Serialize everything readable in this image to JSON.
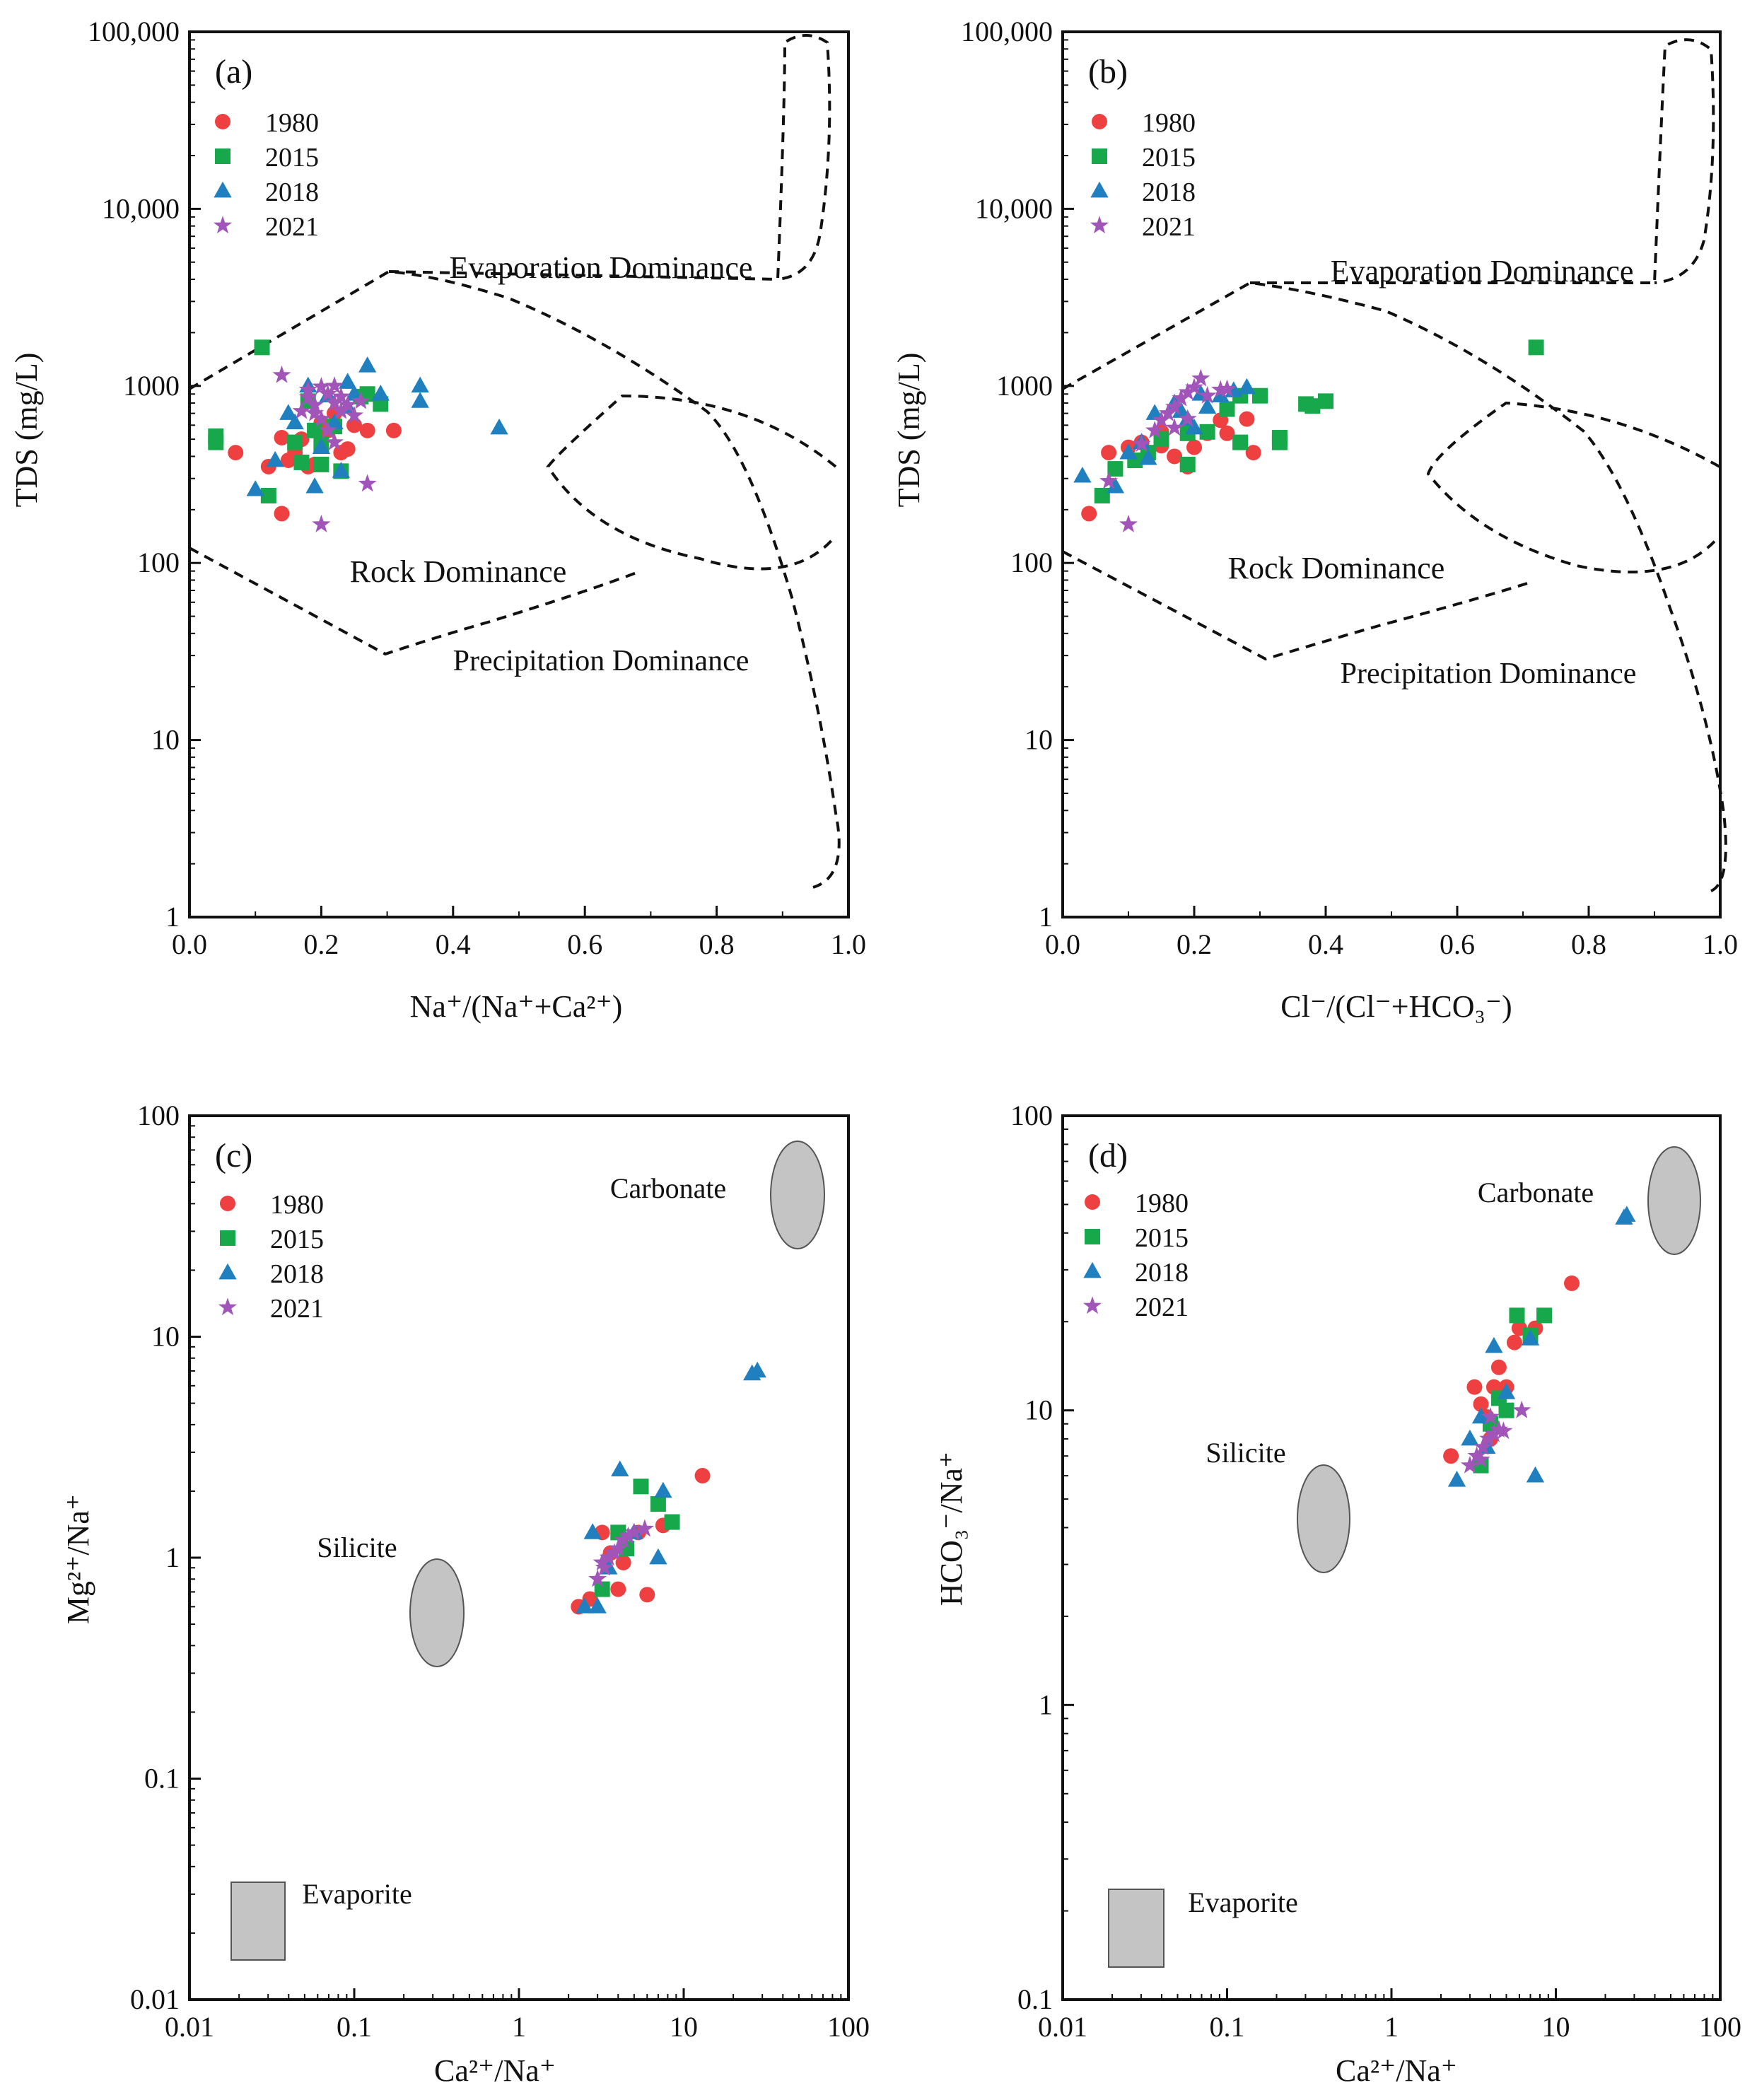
{
  "colors": {
    "1980": "#ee4040",
    "2015": "#16a84a",
    "2018": "#1f7fbf",
    "2021": "#a155b9",
    "field": "#c4c4c4"
  },
  "chart_data": [
    {
      "type": "scatter",
      "panel_label": "(a)",
      "xscale": "linear",
      "yscale": "log",
      "xlim": [
        0,
        1
      ],
      "ylim": [
        1,
        100000
      ],
      "xticks": [
        "0.0",
        "0.2",
        "0.4",
        "0.6",
        "0.8",
        "1.0"
      ],
      "yticks": [
        "1",
        "10",
        "100",
        "1000",
        "10,000",
        "100,000"
      ],
      "xlabel": "Na⁺/(Na⁺+Ca²⁺)",
      "ylabel": "TDS (mg/L)",
      "legend": [
        "1980",
        "2015",
        "2018",
        "2021"
      ],
      "annotations": [
        "Evaporation Dominance",
        "Rock Dominance",
        "Precipitation Dominance"
      ],
      "series": [
        {
          "name": "1980",
          "marker": "circle",
          "points": [
            [
              0.07,
              420
            ],
            [
              0.12,
              350
            ],
            [
              0.14,
              510
            ],
            [
              0.15,
              380
            ],
            [
              0.16,
              420
            ],
            [
              0.17,
              500
            ],
            [
              0.18,
              350
            ],
            [
              0.2,
              620
            ],
            [
              0.21,
              560
            ],
            [
              0.22,
              700
            ],
            [
              0.23,
              420
            ],
            [
              0.24,
              440
            ],
            [
              0.25,
              600
            ],
            [
              0.27,
              560
            ],
            [
              0.31,
              560
            ],
            [
              0.14,
              190
            ],
            [
              0.19,
              360
            ]
          ]
        },
        {
          "name": "2015",
          "marker": "square",
          "points": [
            [
              0.04,
              520
            ],
            [
              0.04,
              480
            ],
            [
              0.11,
              1650
            ],
            [
              0.12,
              240
            ],
            [
              0.16,
              480
            ],
            [
              0.17,
              370
            ],
            [
              0.18,
              820
            ],
            [
              0.19,
              560
            ],
            [
              0.2,
              470
            ],
            [
              0.2,
              360
            ],
            [
              0.22,
              590
            ],
            [
              0.23,
              330
            ],
            [
              0.26,
              870
            ],
            [
              0.27,
              900
            ],
            [
              0.29,
              790
            ]
          ]
        },
        {
          "name": "2018",
          "marker": "triangle",
          "points": [
            [
              0.1,
              260
            ],
            [
              0.13,
              380
            ],
            [
              0.15,
              700
            ],
            [
              0.16,
              620
            ],
            [
              0.18,
              1000
            ],
            [
              0.19,
              270
            ],
            [
              0.2,
              450
            ],
            [
              0.22,
              620
            ],
            [
              0.23,
              330
            ],
            [
              0.24,
              1050
            ],
            [
              0.25,
              900
            ],
            [
              0.27,
              1300
            ],
            [
              0.29,
              900
            ],
            [
              0.35,
              1000
            ],
            [
              0.35,
              820
            ],
            [
              0.47,
              580
            ],
            [
              0.24,
              760
            ],
            [
              0.21,
              880
            ]
          ]
        },
        {
          "name": "2021",
          "marker": "star",
          "points": [
            [
              0.14,
              1150
            ],
            [
              0.18,
              950
            ],
            [
              0.18,
              860
            ],
            [
              0.19,
              780
            ],
            [
              0.19,
              700
            ],
            [
              0.2,
              650
            ],
            [
              0.2,
              990
            ],
            [
              0.21,
              900
            ],
            [
              0.21,
              560
            ],
            [
              0.22,
              800
            ],
            [
              0.22,
              1000
            ],
            [
              0.23,
              720
            ],
            [
              0.23,
              870
            ],
            [
              0.24,
              780
            ],
            [
              0.25,
              680
            ],
            [
              0.26,
              820
            ],
            [
              0.22,
              480
            ],
            [
              0.2,
              165
            ],
            [
              0.27,
              280
            ],
            [
              0.17,
              720
            ]
          ]
        }
      ]
    },
    {
      "type": "scatter",
      "panel_label": "(b)",
      "xscale": "linear",
      "yscale": "log",
      "xlim": [
        0,
        1
      ],
      "ylim": [
        1,
        100000
      ],
      "xticks": [
        "0.0",
        "0.2",
        "0.4",
        "0.6",
        "0.8",
        "1.0"
      ],
      "yticks": [
        "1",
        "10",
        "100",
        "1000",
        "10,000",
        "100,000"
      ],
      "xlabel": "Cl⁻/(Cl⁻+HCO₃⁻)",
      "ylabel": "TDS (mg/L)",
      "legend": [
        "1980",
        "2015",
        "2018",
        "2021"
      ],
      "annotations": [
        "Evaporation Dominance",
        "Rock Dominance",
        "Precipitation Dominance"
      ],
      "series": [
        {
          "name": "1980",
          "marker": "circle",
          "points": [
            [
              0.04,
              190
            ],
            [
              0.07,
              420
            ],
            [
              0.1,
              450
            ],
            [
              0.12,
              480
            ],
            [
              0.15,
              550
            ],
            [
              0.17,
              400
            ],
            [
              0.19,
              350
            ],
            [
              0.2,
              450
            ],
            [
              0.22,
              540
            ],
            [
              0.24,
              640
            ],
            [
              0.25,
              540
            ],
            [
              0.28,
              650
            ],
            [
              0.29,
              420
            ],
            [
              0.15,
              460
            ]
          ]
        },
        {
          "name": "2015",
          "marker": "square",
          "points": [
            [
              0.06,
              240
            ],
            [
              0.08,
              340
            ],
            [
              0.11,
              380
            ],
            [
              0.13,
              420
            ],
            [
              0.15,
              500
            ],
            [
              0.19,
              540
            ],
            [
              0.19,
              360
            ],
            [
              0.22,
              550
            ],
            [
              0.25,
              740
            ],
            [
              0.27,
              480
            ],
            [
              0.27,
              880
            ],
            [
              0.3,
              880
            ],
            [
              0.33,
              480
            ],
            [
              0.33,
              510
            ],
            [
              0.37,
              790
            ],
            [
              0.38,
              770
            ],
            [
              0.4,
              820
            ],
            [
              0.72,
              1650
            ]
          ]
        },
        {
          "name": "2018",
          "marker": "triangle",
          "points": [
            [
              0.03,
              310
            ],
            [
              0.08,
              270
            ],
            [
              0.1,
              420
            ],
            [
              0.12,
              480
            ],
            [
              0.13,
              390
            ],
            [
              0.14,
              700
            ],
            [
              0.17,
              800
            ],
            [
              0.19,
              650
            ],
            [
              0.2,
              580
            ],
            [
              0.21,
              900
            ],
            [
              0.22,
              760
            ],
            [
              0.24,
              880
            ],
            [
              0.26,
              940
            ],
            [
              0.28,
              980
            ],
            [
              0.18,
              720
            ]
          ]
        },
        {
          "name": "2021",
          "marker": "star",
          "points": [
            [
              0.07,
              290
            ],
            [
              0.1,
              165
            ],
            [
              0.12,
              470
            ],
            [
              0.14,
              560
            ],
            [
              0.15,
              640
            ],
            [
              0.16,
              700
            ],
            [
              0.17,
              760
            ],
            [
              0.18,
              850
            ],
            [
              0.19,
              920
            ],
            [
              0.2,
              980
            ],
            [
              0.21,
              1100
            ],
            [
              0.22,
              880
            ],
            [
              0.24,
              950
            ],
            [
              0.25,
              960
            ],
            [
              0.19,
              650
            ],
            [
              0.17,
              580
            ]
          ]
        }
      ]
    },
    {
      "type": "scatter",
      "panel_label": "(c)",
      "xscale": "log",
      "yscale": "log",
      "xlim": [
        0.01,
        100
      ],
      "ylim": [
        0.01,
        100
      ],
      "xticks": [
        "0.01",
        "0.1",
        "1",
        "10",
        "100"
      ],
      "yticks": [
        "0.01",
        "0.1",
        "1",
        "10",
        "100"
      ],
      "xlabel": "Ca²⁺/Na⁺",
      "ylabel": "Mg²⁺/Na⁺",
      "legend": [
        "1980",
        "2015",
        "2018",
        "2021"
      ],
      "annotations": [
        "Carbonate",
        "Silicite",
        "Evaporite"
      ],
      "series": [
        {
          "name": "1980",
          "marker": "circle",
          "points": [
            [
              2.3,
              0.6
            ],
            [
              2.7,
              0.65
            ],
            [
              3.2,
              1.3
            ],
            [
              4.0,
              0.72
            ],
            [
              4.3,
              0.95
            ],
            [
              5.3,
              1.3
            ],
            [
              6.0,
              0.68
            ],
            [
              7.5,
              1.4
            ],
            [
              13,
              2.35
            ],
            [
              3.6,
              1.05
            ]
          ]
        },
        {
          "name": "2015",
          "marker": "square",
          "points": [
            [
              3.2,
              0.72
            ],
            [
              4.0,
              1.3
            ],
            [
              5.5,
              2.1
            ],
            [
              7.0,
              1.75
            ],
            [
              8.5,
              1.45
            ],
            [
              4.5,
              1.1
            ]
          ]
        },
        {
          "name": "2018",
          "marker": "triangle",
          "points": [
            [
              2.5,
              0.6
            ],
            [
              2.8,
              1.3
            ],
            [
              3.0,
              0.6
            ],
            [
              4.1,
              2.5
            ],
            [
              5.0,
              1.3
            ],
            [
              7.0,
              1.0
            ],
            [
              7.5,
              2.0
            ],
            [
              26,
              6.8
            ],
            [
              28,
              7.0
            ],
            [
              3.5,
              0.9
            ]
          ]
        },
        {
          "name": "2021",
          "marker": "star",
          "points": [
            [
              3.0,
              0.8
            ],
            [
              3.3,
              0.9
            ],
            [
              3.5,
              1.0
            ],
            [
              3.8,
              1.05
            ],
            [
              4.0,
              1.1
            ],
            [
              4.3,
              1.2
            ],
            [
              4.6,
              1.25
            ],
            [
              5.0,
              1.3
            ],
            [
              5.8,
              1.35
            ],
            [
              3.2,
              0.95
            ]
          ]
        }
      ]
    },
    {
      "type": "scatter",
      "panel_label": "(d)",
      "xscale": "log",
      "yscale": "log",
      "xlim": [
        0.01,
        100
      ],
      "ylim": [
        0.1,
        100
      ],
      "xticks": [
        "0.01",
        "0.1",
        "1",
        "10",
        "100"
      ],
      "yticks": [
        "0.1",
        "1",
        "10",
        "100"
      ],
      "xlabel": "Ca²⁺/Na⁺",
      "ylabel": "HCO₃⁻/Na⁺",
      "legend": [
        "1980",
        "2015",
        "2018",
        "2021"
      ],
      "annotations": [
        "Carbonate",
        "Silicite",
        "Evaporite"
      ],
      "series": [
        {
          "name": "1980",
          "marker": "circle",
          "points": [
            [
              2.3,
              7.0
            ],
            [
              3.2,
              12
            ],
            [
              3.5,
              10.5
            ],
            [
              4.2,
              12
            ],
            [
              4.5,
              14
            ],
            [
              5.0,
              12
            ],
            [
              5.6,
              17
            ],
            [
              6.0,
              19
            ],
            [
              7.5,
              19
            ],
            [
              12.5,
              27
            ],
            [
              3.8,
              9.5
            ],
            [
              4.0,
              8.0
            ]
          ]
        },
        {
          "name": "2015",
          "marker": "square",
          "points": [
            [
              3.5,
              6.5
            ],
            [
              4.0,
              9.0
            ],
            [
              5.0,
              10
            ],
            [
              5.8,
              21
            ],
            [
              7.0,
              18
            ],
            [
              8.5,
              21
            ],
            [
              4.5,
              11
            ]
          ]
        },
        {
          "name": "2018",
          "marker": "triangle",
          "points": [
            [
              2.5,
              5.8
            ],
            [
              3.0,
              8.0
            ],
            [
              3.5,
              9.5
            ],
            [
              4.2,
              16.5
            ],
            [
              5.0,
              11.5
            ],
            [
              7.0,
              17.5
            ],
            [
              7.5,
              6.0
            ],
            [
              26,
              45
            ],
            [
              27,
              46
            ],
            [
              3.8,
              7.5
            ]
          ]
        },
        {
          "name": "2021",
          "marker": "star",
          "points": [
            [
              3.0,
              6.5
            ],
            [
              3.3,
              7.0
            ],
            [
              3.6,
              7.5
            ],
            [
              3.9,
              8.0
            ],
            [
              4.2,
              8.3
            ],
            [
              4.5,
              8.6
            ],
            [
              4.8,
              8.5
            ],
            [
              6.2,
              10
            ],
            [
              3.5,
              6.8
            ],
            [
              4.0,
              9.5
            ]
          ]
        }
      ]
    }
  ]
}
